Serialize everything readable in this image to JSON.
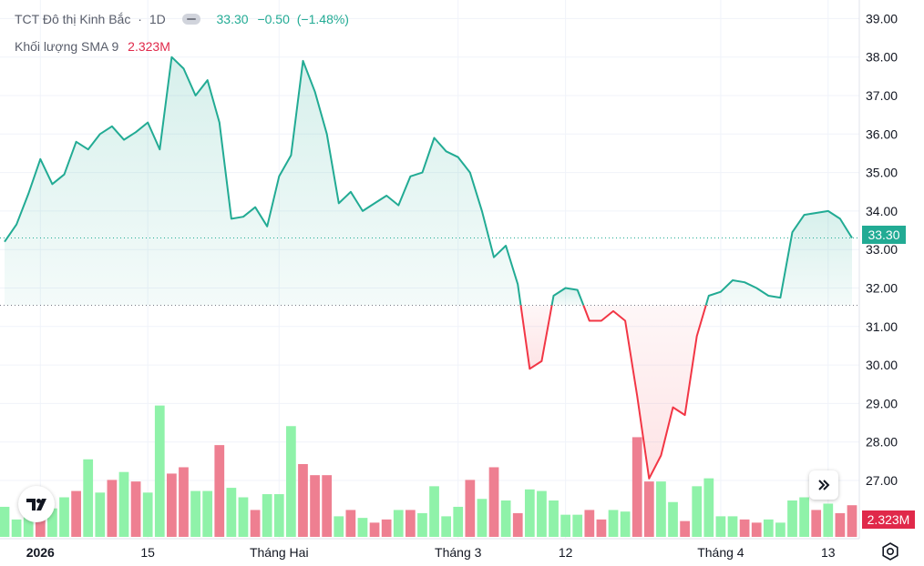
{
  "legend": {
    "symbol": "TCT Đô thị Kinh Bắc",
    "separator": "·",
    "interval": "1D",
    "last": "33.30",
    "change": "−0.50",
    "change_pct": "(−1.48%)",
    "volume_label": "Khối lượng SMA 9",
    "volume_value": "2.323M"
  },
  "price_tag": "33.30",
  "volume_tag": "2.323M",
  "icons": {
    "goto_realtime": "double-chevron-right-icon",
    "logo": "tradingview-logo-icon",
    "settings": "gear-icon"
  },
  "colors": {
    "up": "#22ab94",
    "down": "#f23645",
    "volume_up": "#8ff2a9",
    "volume_down": "#ee7f91",
    "fill_up": "#e6f4f1",
    "fill_down": "#fdeaea"
  },
  "chart_data": {
    "type": "line",
    "baseline": 31.55,
    "last_price": 33.3,
    "ylim": [
      26.0,
      39.3
    ],
    "y_ticks": [
      "27.00",
      "28.00",
      "29.00",
      "30.00",
      "31.00",
      "32.00",
      "33.00",
      "34.00",
      "35.00",
      "36.00",
      "37.00",
      "38.00",
      "39.00"
    ],
    "x_ticks": [
      {
        "label": "2026",
        "i": 3,
        "bold": true
      },
      {
        "label": "15",
        "i": 12
      },
      {
        "label": "Tháng Hai",
        "i": 23
      },
      {
        "label": "Tháng 3",
        "i": 38
      },
      {
        "label": "12",
        "i": 47
      },
      {
        "label": "Tháng 4",
        "i": 60
      },
      {
        "label": "13",
        "i": 69
      }
    ],
    "prices": [
      33.2,
      33.65,
      34.45,
      35.35,
      34.7,
      34.95,
      35.8,
      35.6,
      36.0,
      36.2,
      35.85,
      36.05,
      36.3,
      35.6,
      38.0,
      37.7,
      37.0,
      37.4,
      36.3,
      33.8,
      33.85,
      34.1,
      33.6,
      34.9,
      35.45,
      37.9,
      37.1,
      36.0,
      34.2,
      34.5,
      34.0,
      34.2,
      34.4,
      34.15,
      34.9,
      35.0,
      35.9,
      35.55,
      35.4,
      35.0,
      34.0,
      32.8,
      33.1,
      32.1,
      29.9,
      30.1,
      31.8,
      32.0,
      31.95,
      31.15,
      31.15,
      31.4,
      31.15,
      29.2,
      27.05,
      27.65,
      28.9,
      28.7,
      30.75,
      31.8,
      31.9,
      32.2,
      32.15,
      32.0,
      31.8,
      31.75,
      33.45,
      33.9,
      33.95,
      34.0,
      33.8,
      33.3
    ],
    "volumes": [
      0.95,
      0.55,
      0.75,
      0.85,
      0.9,
      1.25,
      1.45,
      2.45,
      1.4,
      1.8,
      2.05,
      1.75,
      1.4,
      4.15,
      2.0,
      2.2,
      1.45,
      1.45,
      2.9,
      1.55,
      1.25,
      0.85,
      1.35,
      1.35,
      3.5,
      2.3,
      1.95,
      1.95,
      0.65,
      0.85,
      0.6,
      0.45,
      0.55,
      0.85,
      0.85,
      0.75,
      1.6,
      0.65,
      0.95,
      1.8,
      1.2,
      2.2,
      1.15,
      0.75,
      1.5,
      1.45,
      1.15,
      0.7,
      0.7,
      0.85,
      0.55,
      0.85,
      0.8,
      3.15,
      1.75,
      1.75,
      1.1,
      0.5,
      1.6,
      1.85,
      0.65,
      0.65,
      0.55,
      0.45,
      0.55,
      0.45,
      1.15,
      1.25,
      0.85,
      1.05,
      0.75,
      1.0
    ],
    "volume_up": [
      true,
      true,
      true,
      false,
      true,
      true,
      false,
      true,
      true,
      false,
      true,
      false,
      true,
      true,
      false,
      false,
      true,
      true,
      false,
      true,
      true,
      false,
      true,
      true,
      true,
      false,
      false,
      false,
      true,
      false,
      true,
      false,
      false,
      true,
      false,
      true,
      true,
      true,
      true,
      false,
      true,
      false,
      true,
      false,
      true,
      true,
      true,
      true,
      true,
      false,
      false,
      true,
      true,
      false,
      false,
      true,
      true,
      false,
      true,
      true,
      true,
      true,
      false,
      false,
      true,
      true,
      true,
      true,
      false,
      true,
      false,
      false
    ],
    "volume_max": 4.6
  }
}
